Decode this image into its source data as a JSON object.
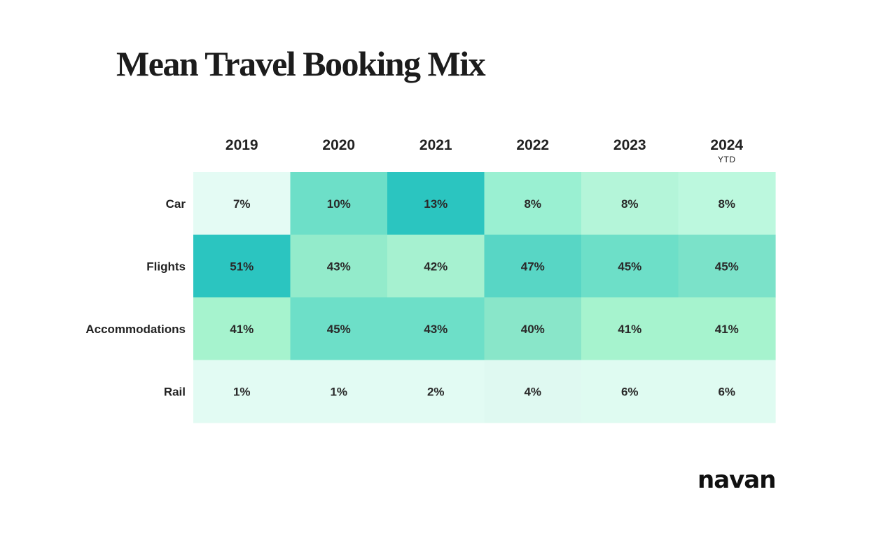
{
  "chart_data": {
    "type": "heatmap",
    "title": "Mean Travel Booking Mix",
    "columns": [
      {
        "year": "2019",
        "note": ""
      },
      {
        "year": "2020",
        "note": ""
      },
      {
        "year": "2021",
        "note": ""
      },
      {
        "year": "2022",
        "note": ""
      },
      {
        "year": "2023",
        "note": ""
      },
      {
        "year": "2024",
        "note": "YTD"
      }
    ],
    "rows": [
      "Car",
      "Flights",
      "Accommodations",
      "Rail"
    ],
    "values": [
      [
        7,
        10,
        13,
        8,
        8,
        8
      ],
      [
        51,
        43,
        42,
        47,
        45,
        45
      ],
      [
        41,
        45,
        43,
        40,
        41,
        41
      ],
      [
        1,
        1,
        2,
        4,
        6,
        6
      ]
    ],
    "value_suffix": "%",
    "cell_colors": [
      [
        "#e4fbf4",
        "#6ddfc8",
        "#2bc5c0",
        "#9af0d2",
        "#b4f5d9",
        "#bcf8de"
      ],
      [
        "#2bc5c0",
        "#93ebcb",
        "#a6f1d0",
        "#58d6c5",
        "#6ddfc8",
        "#7be2c9"
      ],
      [
        "#a6f3ce",
        "#6ddfc8",
        "#6ddfc8",
        "#89e6c9",
        "#a6f3ce",
        "#a6f3ce"
      ],
      [
        "#e2fbf3",
        "#e2fbf3",
        "#e2fbf3",
        "#dff9f1",
        "#dffbf1",
        "#dffbf1"
      ]
    ]
  },
  "brand": {
    "logo_text": "navan"
  }
}
